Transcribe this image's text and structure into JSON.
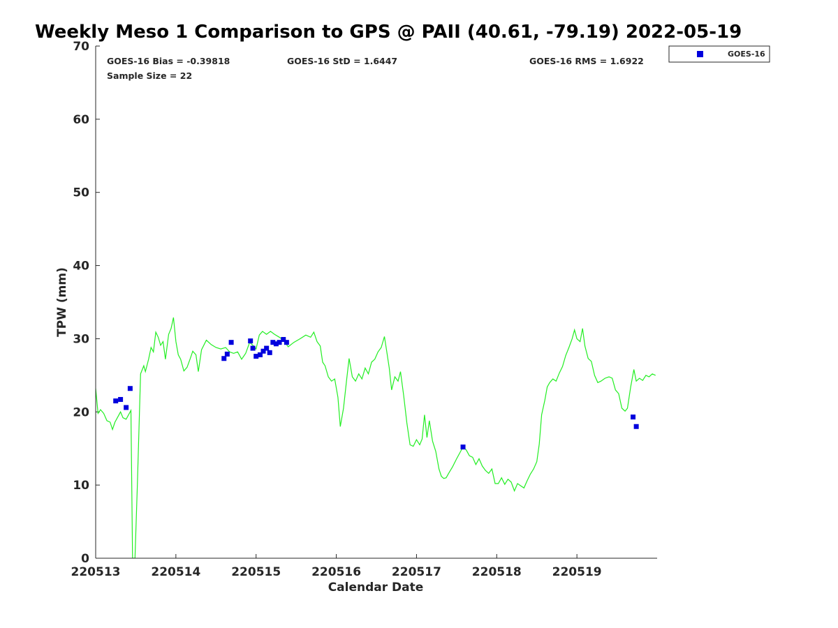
{
  "chart_data": {
    "type": "scatter",
    "title": "Weekly Meso 1 Comparison to GPS @ PAII (40.61, -79.19) 2022-05-19",
    "xlabel": "Calendar Date",
    "ylabel": "TPW (mm)",
    "xlim": [
      0,
      7
    ],
    "ylim": [
      0,
      70
    ],
    "x_ticks": [
      {
        "value": 0,
        "label": "220513"
      },
      {
        "value": 1,
        "label": "220514"
      },
      {
        "value": 2,
        "label": "220515"
      },
      {
        "value": 3,
        "label": "220516"
      },
      {
        "value": 4,
        "label": "220517"
      },
      {
        "value": 5,
        "label": "220518"
      },
      {
        "value": 6,
        "label": "220519"
      }
    ],
    "y_ticks": [
      0,
      10,
      20,
      30,
      40,
      50,
      60,
      70
    ],
    "grid": false,
    "legend": {
      "position": "top-right outside",
      "entries": [
        "GOES-16"
      ]
    },
    "stats": {
      "bias": "GOES-16 Bias = -0.39818",
      "std": "GOES-16 StD = 1.6447",
      "rms": "GOES-16 RMS = 1.6922",
      "sample": "Sample Size = 22"
    },
    "series": [
      {
        "name": "GOES-16",
        "kind": "scatter",
        "color": "#0000dd",
        "points": [
          [
            0.25,
            21.5
          ],
          [
            0.31,
            21.7
          ],
          [
            0.38,
            20.6
          ],
          [
            0.43,
            23.2
          ],
          [
            1.6,
            27.3
          ],
          [
            1.64,
            27.9
          ],
          [
            1.69,
            29.5
          ],
          [
            1.93,
            29.7
          ],
          [
            1.96,
            28.7
          ],
          [
            2.0,
            27.6
          ],
          [
            2.05,
            27.8
          ],
          [
            2.09,
            28.3
          ],
          [
            2.13,
            28.7
          ],
          [
            2.17,
            28.1
          ],
          [
            2.21,
            29.5
          ],
          [
            2.25,
            29.3
          ],
          [
            2.29,
            29.5
          ],
          [
            2.34,
            29.9
          ],
          [
            2.38,
            29.5
          ],
          [
            4.58,
            15.2
          ],
          [
            6.7,
            19.3
          ],
          [
            6.74,
            18.0
          ]
        ]
      },
      {
        "kind": "line",
        "color": "#22ee22",
        "points": [
          [
            0.0,
            23.2
          ],
          [
            0.03,
            19.8
          ],
          [
            0.06,
            20.3
          ],
          [
            0.1,
            19.8
          ],
          [
            0.14,
            18.8
          ],
          [
            0.18,
            18.6
          ],
          [
            0.21,
            17.6
          ],
          [
            0.24,
            18.6
          ],
          [
            0.28,
            19.4
          ],
          [
            0.31,
            20.0
          ],
          [
            0.34,
            19.2
          ],
          [
            0.38,
            19.0
          ],
          [
            0.42,
            19.8
          ],
          [
            0.44,
            20.2
          ],
          [
            0.46,
            0.0
          ],
          [
            0.49,
            0.0
          ],
          [
            0.52,
            10.0
          ],
          [
            0.56,
            25.2
          ],
          [
            0.6,
            26.3
          ],
          [
            0.62,
            25.5
          ],
          [
            0.66,
            27.2
          ],
          [
            0.69,
            28.8
          ],
          [
            0.72,
            28.2
          ],
          [
            0.75,
            30.9
          ],
          [
            0.78,
            30.2
          ],
          [
            0.81,
            29.1
          ],
          [
            0.84,
            29.6
          ],
          [
            0.87,
            27.2
          ],
          [
            0.91,
            30.6
          ],
          [
            0.94,
            31.4
          ],
          [
            0.97,
            32.9
          ],
          [
            1.0,
            29.6
          ],
          [
            1.03,
            27.8
          ],
          [
            1.06,
            27.2
          ],
          [
            1.1,
            25.6
          ],
          [
            1.14,
            26.1
          ],
          [
            1.18,
            27.3
          ],
          [
            1.21,
            28.3
          ],
          [
            1.25,
            27.8
          ],
          [
            1.28,
            25.5
          ],
          [
            1.32,
            28.5
          ],
          [
            1.38,
            29.8
          ],
          [
            1.44,
            29.2
          ],
          [
            1.5,
            28.8
          ],
          [
            1.56,
            28.6
          ],
          [
            1.62,
            28.8
          ],
          [
            1.67,
            28.2
          ],
          [
            1.72,
            28.0
          ],
          [
            1.77,
            28.2
          ],
          [
            1.82,
            27.2
          ],
          [
            1.87,
            28.0
          ],
          [
            1.92,
            29.5
          ],
          [
            1.97,
            29.0
          ],
          [
            2.0,
            28.6
          ],
          [
            2.04,
            30.5
          ],
          [
            2.08,
            31.0
          ],
          [
            2.13,
            30.6
          ],
          [
            2.18,
            31.0
          ],
          [
            2.23,
            30.6
          ],
          [
            2.29,
            30.2
          ],
          [
            2.34,
            29.8
          ],
          [
            2.4,
            28.9
          ],
          [
            2.47,
            29.5
          ],
          [
            2.55,
            30.0
          ],
          [
            2.62,
            30.5
          ],
          [
            2.68,
            30.2
          ],
          [
            2.72,
            30.9
          ],
          [
            2.76,
            29.6
          ],
          [
            2.8,
            29.0
          ],
          [
            2.83,
            26.8
          ],
          [
            2.86,
            26.3
          ],
          [
            2.9,
            24.8
          ],
          [
            2.94,
            24.2
          ],
          [
            2.98,
            24.5
          ],
          [
            3.02,
            22.0
          ],
          [
            3.05,
            18.0
          ],
          [
            3.09,
            20.5
          ],
          [
            3.13,
            24.5
          ],
          [
            3.16,
            27.3
          ],
          [
            3.2,
            24.8
          ],
          [
            3.24,
            24.2
          ],
          [
            3.28,
            25.2
          ],
          [
            3.32,
            24.5
          ],
          [
            3.36,
            26.0
          ],
          [
            3.4,
            25.2
          ],
          [
            3.44,
            26.8
          ],
          [
            3.48,
            27.2
          ],
          [
            3.52,
            28.2
          ],
          [
            3.56,
            28.8
          ],
          [
            3.6,
            30.3
          ],
          [
            3.63,
            28.2
          ],
          [
            3.66,
            26.0
          ],
          [
            3.69,
            23.0
          ],
          [
            3.73,
            24.8
          ],
          [
            3.77,
            24.2
          ],
          [
            3.8,
            25.5
          ],
          [
            3.84,
            22.2
          ],
          [
            3.88,
            18.5
          ],
          [
            3.92,
            15.5
          ],
          [
            3.96,
            15.3
          ],
          [
            4.0,
            16.2
          ],
          [
            4.04,
            15.5
          ],
          [
            4.07,
            16.3
          ],
          [
            4.1,
            19.6
          ],
          [
            4.13,
            16.5
          ],
          [
            4.16,
            18.8
          ],
          [
            4.2,
            16.0
          ],
          [
            4.24,
            14.6
          ],
          [
            4.28,
            12.2
          ],
          [
            4.31,
            11.2
          ],
          [
            4.34,
            10.9
          ],
          [
            4.37,
            11.0
          ],
          [
            4.4,
            11.6
          ],
          [
            4.45,
            12.5
          ],
          [
            4.5,
            13.6
          ],
          [
            4.55,
            14.6
          ],
          [
            4.58,
            15.2
          ],
          [
            4.62,
            14.8
          ],
          [
            4.66,
            14.0
          ],
          [
            4.7,
            13.8
          ],
          [
            4.74,
            12.8
          ],
          [
            4.78,
            13.6
          ],
          [
            4.82,
            12.6
          ],
          [
            4.86,
            12.0
          ],
          [
            4.9,
            11.6
          ],
          [
            4.94,
            12.2
          ],
          [
            4.98,
            10.2
          ],
          [
            5.02,
            10.2
          ],
          [
            5.06,
            11.0
          ],
          [
            5.1,
            10.1
          ],
          [
            5.14,
            10.8
          ],
          [
            5.18,
            10.4
          ],
          [
            5.22,
            9.2
          ],
          [
            5.26,
            10.2
          ],
          [
            5.3,
            9.9
          ],
          [
            5.34,
            9.6
          ],
          [
            5.38,
            10.6
          ],
          [
            5.42,
            11.5
          ],
          [
            5.46,
            12.2
          ],
          [
            5.5,
            13.2
          ],
          [
            5.53,
            15.6
          ],
          [
            5.56,
            19.6
          ],
          [
            5.6,
            21.6
          ],
          [
            5.63,
            23.4
          ],
          [
            5.66,
            24.0
          ],
          [
            5.7,
            24.5
          ],
          [
            5.74,
            24.2
          ],
          [
            5.78,
            25.3
          ],
          [
            5.82,
            26.2
          ],
          [
            5.86,
            27.7
          ],
          [
            5.9,
            28.8
          ],
          [
            5.94,
            30.0
          ],
          [
            5.97,
            31.2
          ],
          [
            6.0,
            30.0
          ],
          [
            6.04,
            29.6
          ],
          [
            6.07,
            31.4
          ],
          [
            6.1,
            29.0
          ],
          [
            6.14,
            27.3
          ],
          [
            6.18,
            26.9
          ],
          [
            6.22,
            25.0
          ],
          [
            6.26,
            24.0
          ],
          [
            6.3,
            24.2
          ],
          [
            6.35,
            24.6
          ],
          [
            6.4,
            24.8
          ],
          [
            6.44,
            24.6
          ],
          [
            6.48,
            23.0
          ],
          [
            6.52,
            22.5
          ],
          [
            6.56,
            20.5
          ],
          [
            6.6,
            20.1
          ],
          [
            6.63,
            20.5
          ],
          [
            6.67,
            23.4
          ],
          [
            6.71,
            25.8
          ],
          [
            6.74,
            24.2
          ],
          [
            6.78,
            24.6
          ],
          [
            6.82,
            24.3
          ],
          [
            6.86,
            25.0
          ],
          [
            6.9,
            24.8
          ],
          [
            6.94,
            25.2
          ],
          [
            6.98,
            25.0
          ]
        ]
      }
    ]
  }
}
